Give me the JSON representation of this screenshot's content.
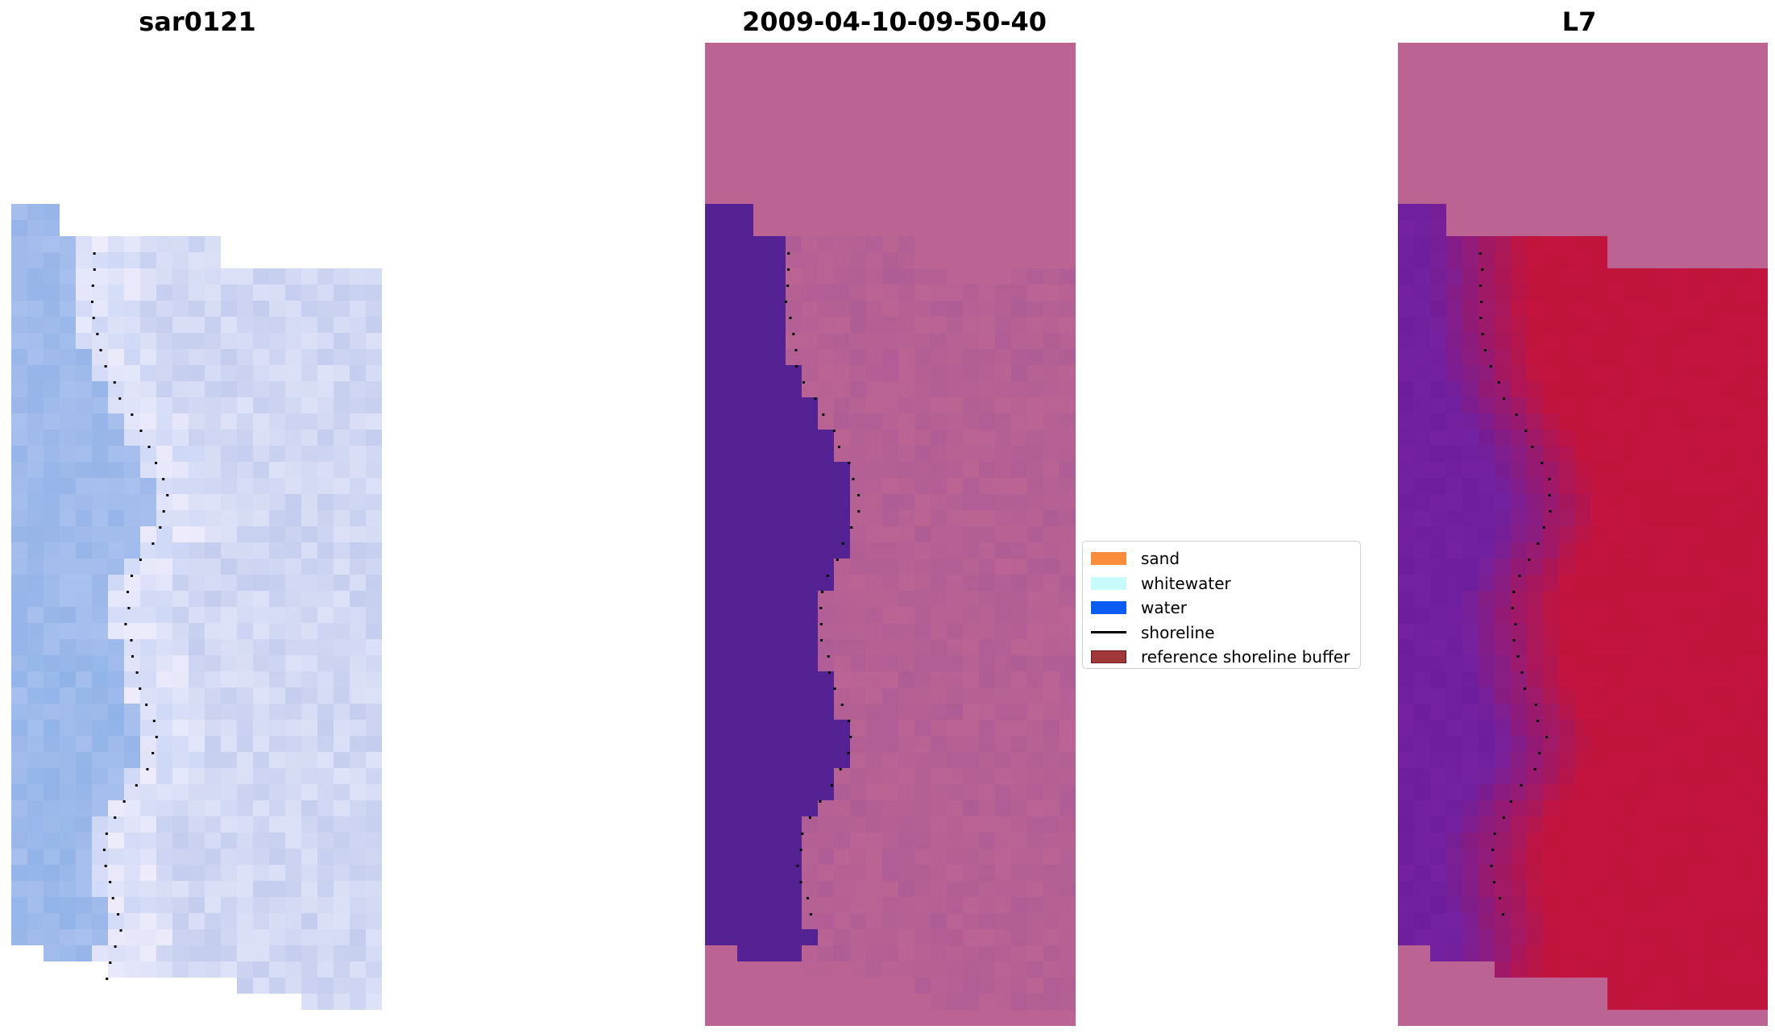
{
  "panels": [
    {
      "title": "sar0121"
    },
    {
      "title": "2009-04-10-09-50-40"
    },
    {
      "title": "L7"
    }
  ],
  "legend": {
    "items": [
      {
        "label": "sand",
        "color": "#fb8c3b",
        "kind": "patch"
      },
      {
        "label": "whitewater",
        "color": "#c8fcfc",
        "kind": "patch"
      },
      {
        "label": "water",
        "color": "#0b5cf3",
        "kind": "patch"
      },
      {
        "label": "shoreline",
        "color": "#000000",
        "kind": "line"
      },
      {
        "label": "reference shoreline buffer",
        "color": "#a0383c",
        "edge": "#6e1a1e",
        "kind": "patch"
      }
    ]
  },
  "colors": {
    "water_class": "#552294",
    "land_mask": "#bb6494",
    "ndwi_water": "#6e1e9c",
    "ndwi_land": "#c0143c"
  },
  "shoreline_samples": [
    [
      0.23,
      0.13
    ],
    [
      0.24,
      0.16
    ],
    [
      0.25,
      0.19
    ],
    [
      0.28,
      0.22
    ],
    [
      0.31,
      0.25
    ],
    [
      0.35,
      0.27
    ],
    [
      0.38,
      0.3
    ],
    [
      0.41,
      0.33
    ],
    [
      0.43,
      0.36
    ],
    [
      0.42,
      0.39
    ],
    [
      0.39,
      0.42
    ],
    [
      0.35,
      0.45
    ],
    [
      0.32,
      0.48
    ],
    [
      0.32,
      0.51
    ],
    [
      0.33,
      0.54
    ],
    [
      0.34,
      0.57
    ],
    [
      0.36,
      0.6
    ],
    [
      0.39,
      0.63
    ],
    [
      0.41,
      0.66
    ],
    [
      0.39,
      0.69
    ],
    [
      0.35,
      0.72
    ],
    [
      0.3,
      0.75
    ],
    [
      0.27,
      0.78
    ],
    [
      0.26,
      0.81
    ],
    [
      0.27,
      0.84
    ],
    [
      0.29,
      0.87
    ],
    [
      0.3,
      0.9
    ],
    [
      0.28,
      0.93
    ],
    [
      0.26,
      0.96
    ]
  ]
}
